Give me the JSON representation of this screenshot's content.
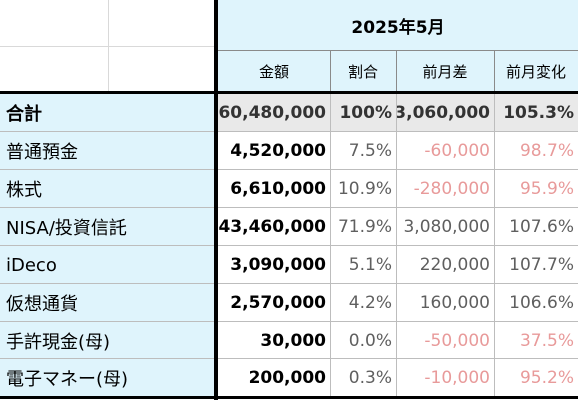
{
  "sheet": {
    "title": "2025年5月",
    "headers": [
      "金額",
      "割合",
      "前月差",
      "前月変化"
    ],
    "rows": [
      {
        "label": "合計",
        "amount": "60,480,000",
        "ratio": "100%",
        "diff": "3,060,000",
        "change": "105.3%",
        "diff_color": "#333333",
        "change_color": "#333333"
      },
      {
        "label": "普通預金",
        "amount": "4,520,000",
        "ratio": "7.5%",
        "diff": "-60,000",
        "change": "98.7%",
        "diff_color": "#e89a9a",
        "change_color": "#e89a9a"
      },
      {
        "label": "株式",
        "amount": "6,610,000",
        "ratio": "10.9%",
        "diff": "-280,000",
        "change": "95.9%",
        "diff_color": "#e89a9a",
        "change_color": "#e89a9a"
      },
      {
        "label": "NISA/投資信託",
        "amount": "43,460,000",
        "ratio": "71.9%",
        "diff": "3,080,000",
        "change": "107.6%",
        "diff_color": "#5f5f5f",
        "change_color": "#5f5f5f"
      },
      {
        "label": "iDeco",
        "amount": "3,090,000",
        "ratio": "5.1%",
        "diff": "220,000",
        "change": "107.7%",
        "diff_color": "#5f5f5f",
        "change_color": "#5f5f5f"
      },
      {
        "label": "仮想通貨",
        "amount": "2,570,000",
        "ratio": "4.2%",
        "diff": "160,000",
        "change": "106.6%",
        "diff_color": "#5f5f5f",
        "change_color": "#5f5f5f"
      },
      {
        "label": "手許現金(母)",
        "amount": "30,000",
        "ratio": "0.0%",
        "diff": "-50,000",
        "change": "37.5%",
        "diff_color": "#e89a9a",
        "change_color": "#e89a9a"
      },
      {
        "label": "電子マネー(母)",
        "amount": "200,000",
        "ratio": "0.3%",
        "diff": "-10,000",
        "change": "95.2%",
        "diff_color": "#e89a9a",
        "change_color": "#e89a9a"
      }
    ]
  },
  "colors": {
    "header_bg": "#dff4fc",
    "total_bg": "#e9e9e9",
    "negative": "#e89a9a",
    "neutral": "#5f5f5f"
  }
}
